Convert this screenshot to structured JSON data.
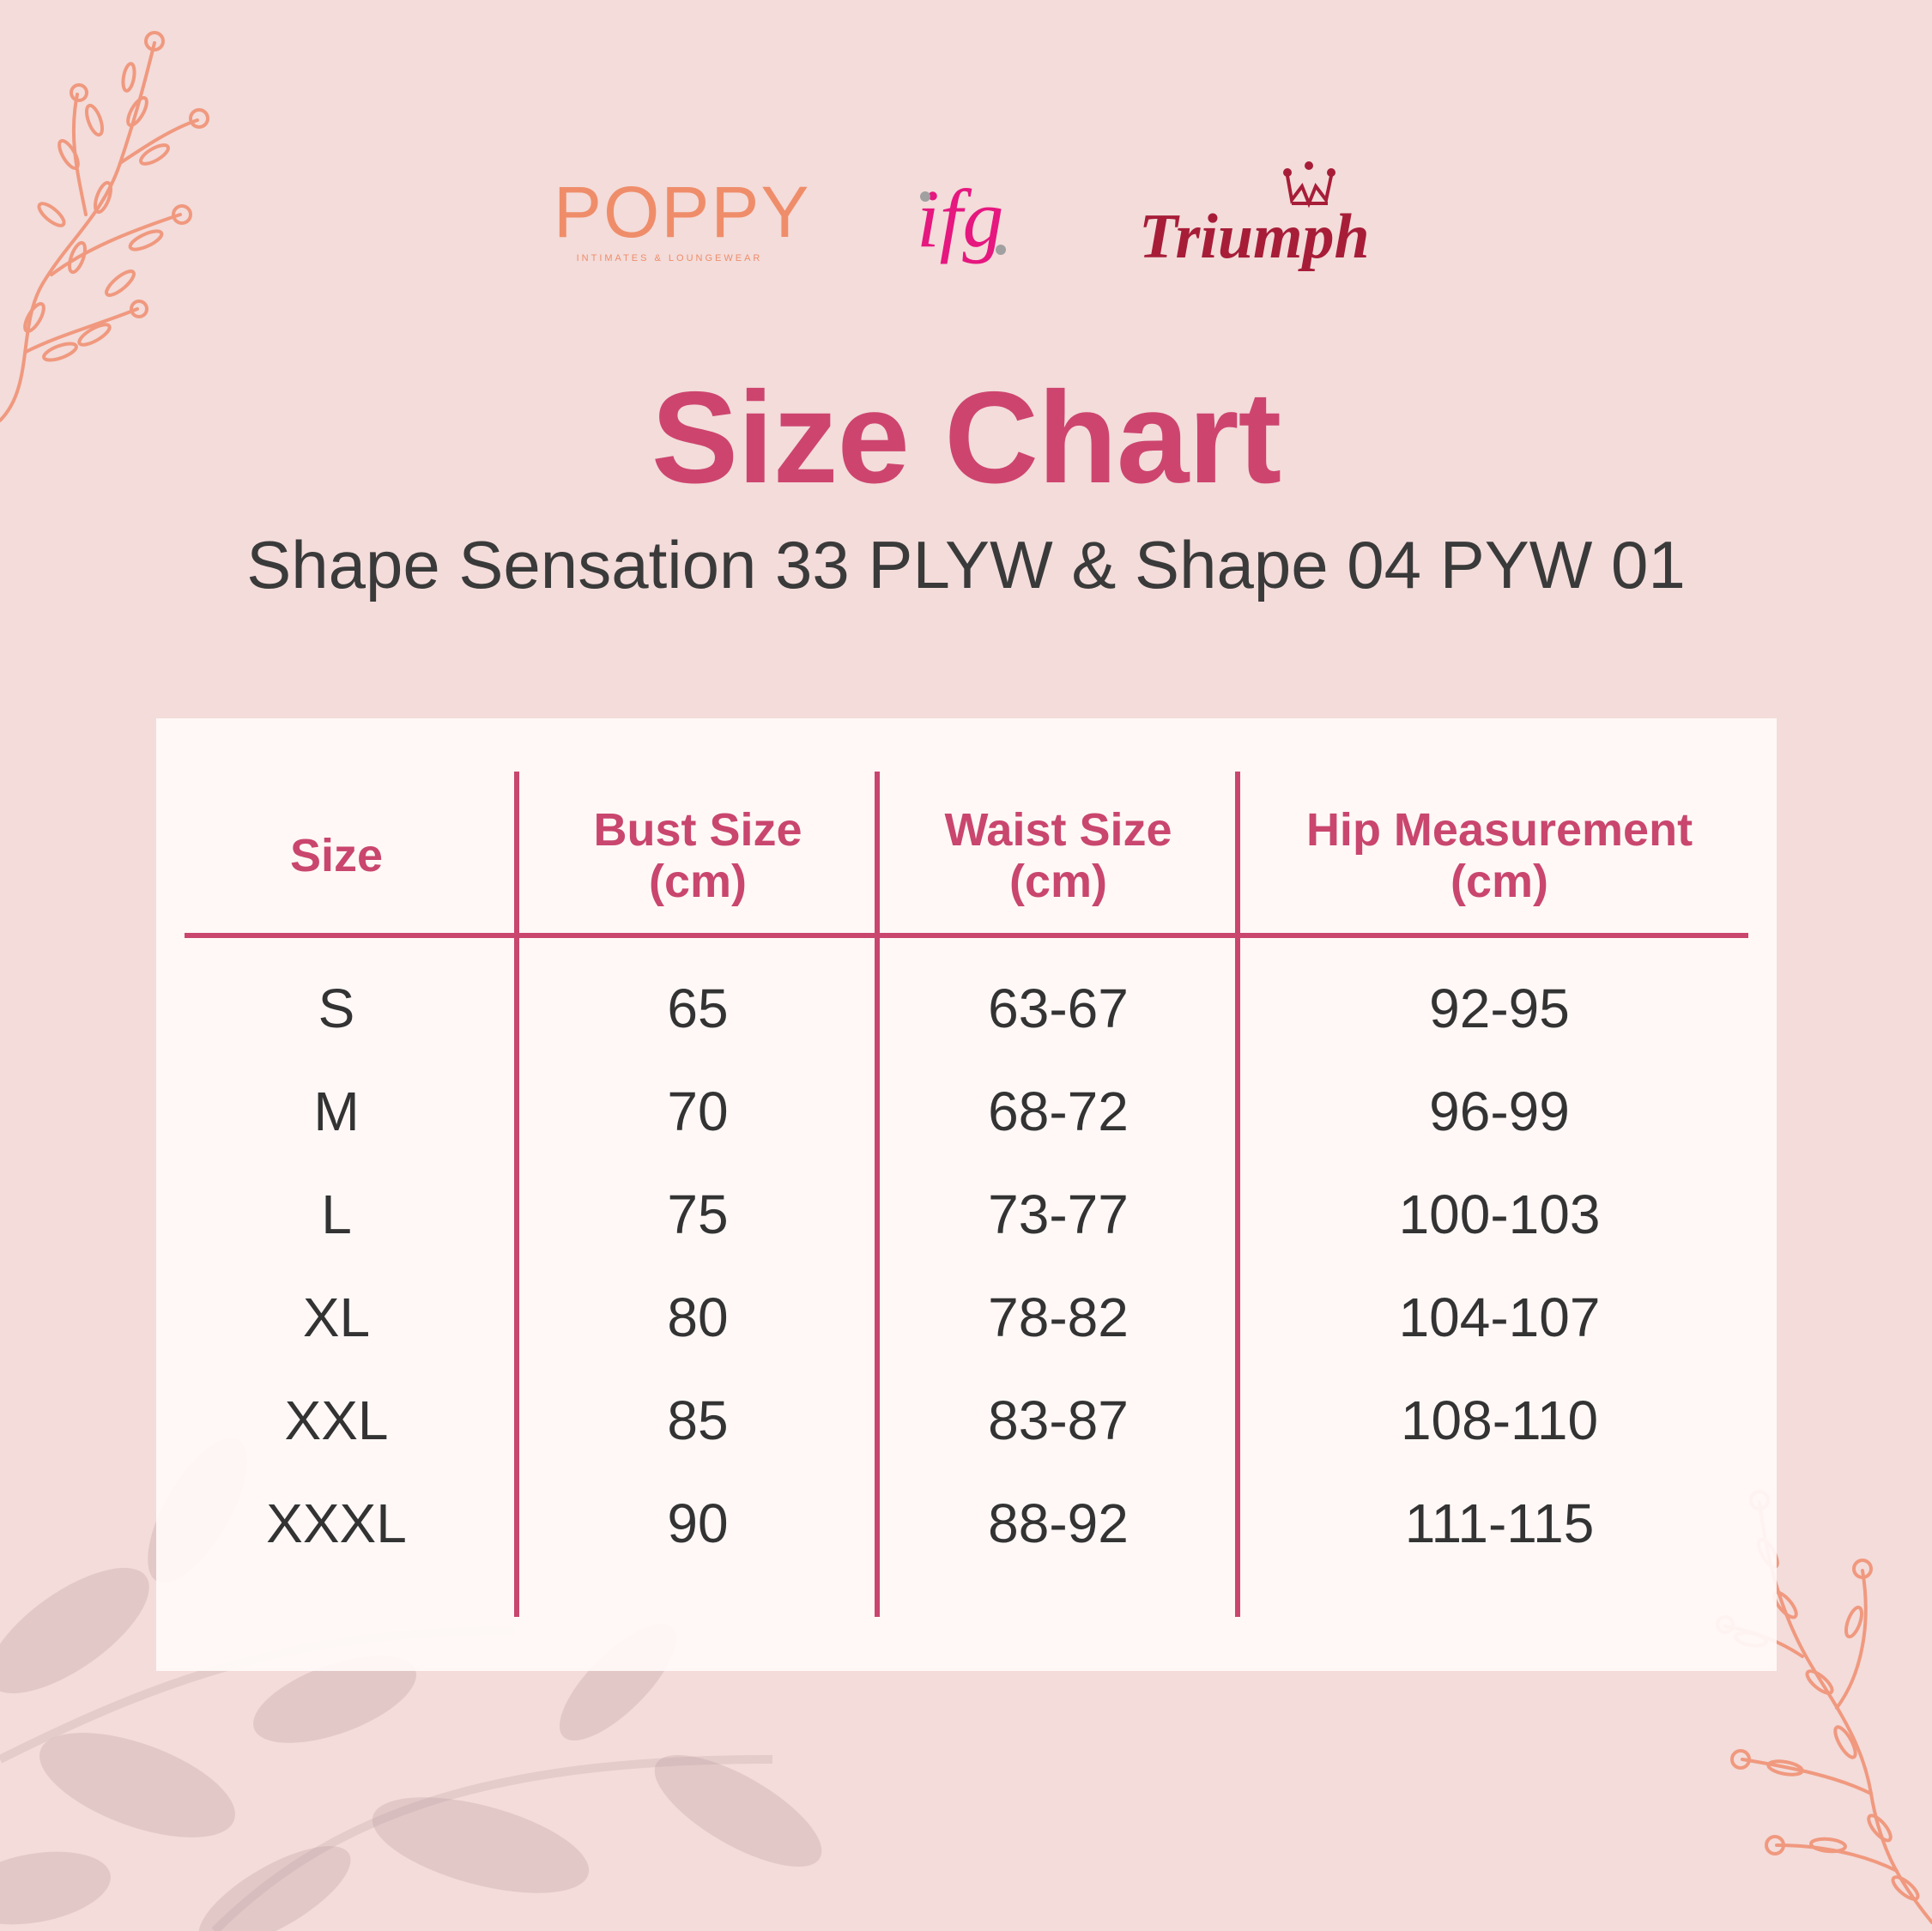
{
  "brands": {
    "poppy": {
      "name": "POPPY",
      "tagline": "INTIMATES & LOUNGEWEAR"
    },
    "ifg": {
      "name": "ifg"
    },
    "triumph": {
      "name": "Triumph"
    }
  },
  "title": "Size Chart",
  "subtitle": "Shape Sensation 33 PLYW & Shape 04 PYW 01",
  "colors": {
    "accent": "#c9466f",
    "background": "#f3dcda",
    "card": "#fdf6f5",
    "text": "#333333",
    "poppy": "#ef8d6a",
    "ifg": "#e6177f",
    "triumph": "#a71d38",
    "branch": "#f0997f"
  },
  "table": {
    "headers": [
      {
        "label": "Size",
        "unit": ""
      },
      {
        "label": "Bust Size",
        "unit": "(cm)"
      },
      {
        "label": "Waist Size",
        "unit": "(cm)"
      },
      {
        "label": "Hip Measurement",
        "unit": "(cm)"
      }
    ],
    "rows": [
      [
        "S",
        "65",
        "63-67",
        "92-95"
      ],
      [
        "M",
        "70",
        "68-72",
        "96-99"
      ],
      [
        "L",
        "75",
        "73-77",
        "100-103"
      ],
      [
        "XL",
        "80",
        "78-82",
        "104-107"
      ],
      [
        "XXL",
        "85",
        "83-87",
        "108-110"
      ],
      [
        "XXXL",
        "90",
        "88-92",
        "111-115"
      ]
    ]
  }
}
